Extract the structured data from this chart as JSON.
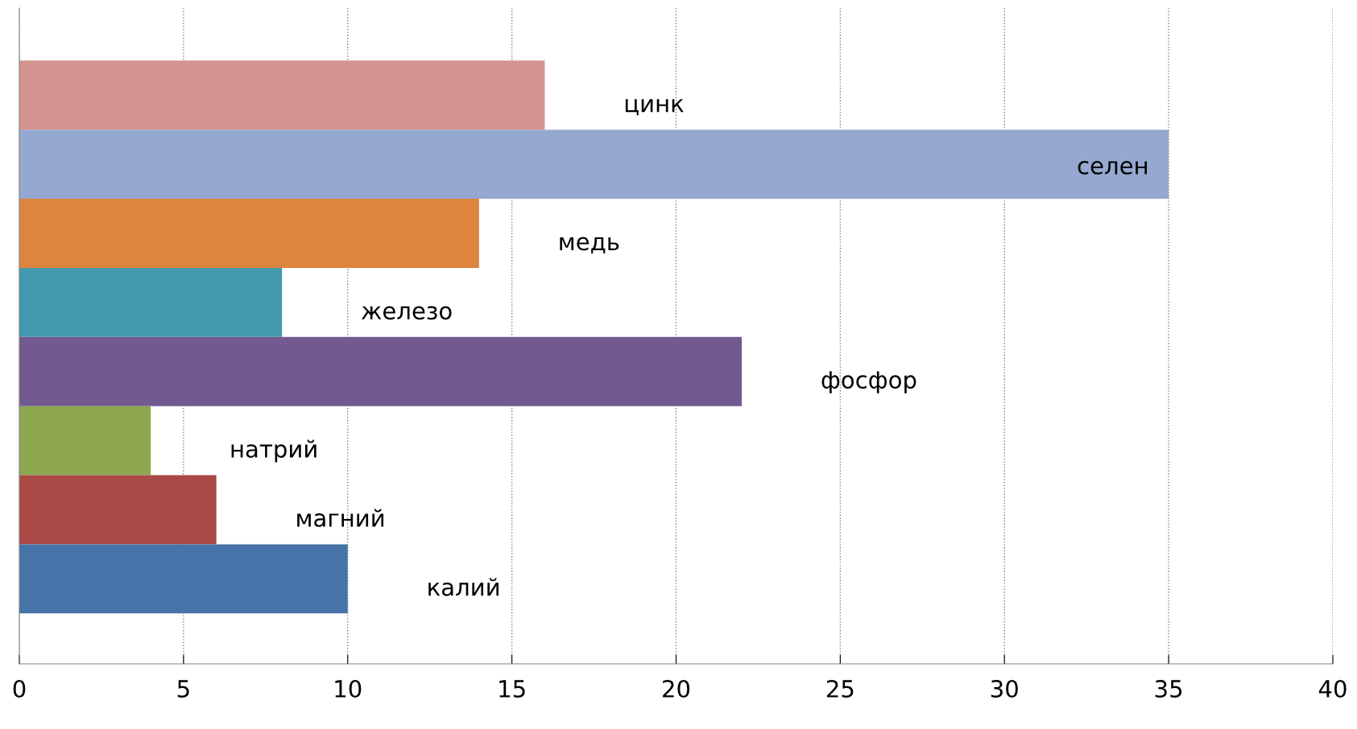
{
  "chart_data": {
    "type": "bar",
    "orientation": "horizontal",
    "categories": [
      "цинк",
      "селен",
      "медь",
      "железо",
      "фосфор",
      "натрий",
      "магний",
      "калий"
    ],
    "values": [
      16,
      35,
      14,
      8,
      22,
      4,
      6,
      10
    ],
    "colors": [
      "#d39391",
      "#95a9d0",
      "#dd843f",
      "#4399ae",
      "#725990",
      "#8ca750",
      "#a94a46",
      "#4674a8"
    ],
    "xlim": [
      0,
      40
    ],
    "xticks": [
      0,
      5,
      10,
      15,
      20,
      25,
      30,
      35,
      40
    ],
    "grid": "x",
    "tick_labels": "x",
    "legend": false
  }
}
